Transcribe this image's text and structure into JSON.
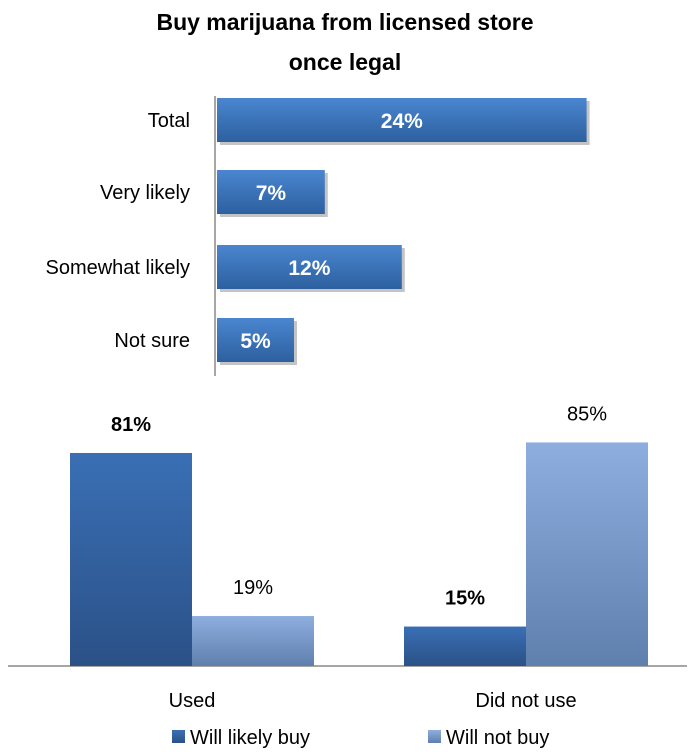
{
  "chart_data": [
    {
      "type": "bar",
      "orientation": "horizontal",
      "title": "Buy marijuana from licensed store once legal",
      "title_lines": [
        "Buy marijuana from licensed store",
        "once legal"
      ],
      "categories": [
        "Total",
        "Very likely",
        "Somewhat likely",
        "Not sure"
      ],
      "values": [
        24,
        7,
        12,
        5
      ],
      "value_labels": [
        "24%",
        "7%",
        "12%",
        "5%"
      ],
      "unit": "%",
      "colors": {
        "bar": "#3a73bf",
        "bar_dark": "#2e5d9c"
      }
    },
    {
      "type": "bar",
      "orientation": "vertical",
      "categories": [
        "Used",
        "Did not use"
      ],
      "series": [
        {
          "name": "Will likely buy",
          "values": [
            81,
            15
          ],
          "labels": [
            "81%",
            "15%"
          ],
          "color": "#3a6fb5"
        },
        {
          "name": "Will not buy",
          "values": [
            19,
            85
          ],
          "labels": [
            "19%",
            "85%"
          ],
          "color": "#8aa9d8"
        }
      ],
      "ylim": [
        0,
        100
      ],
      "legend": "bottom"
    }
  ]
}
